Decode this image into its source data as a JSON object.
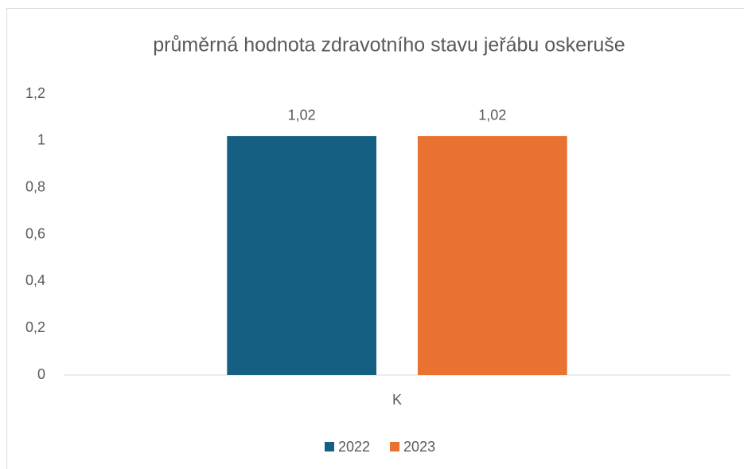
{
  "chart_data": {
    "type": "bar",
    "title": "průměrná hodnota zdravotního stavu jeřábu oskeruše",
    "categories": [
      "K"
    ],
    "series": [
      {
        "name": "2022",
        "color": "#156082",
        "values": [
          1.02
        ],
        "value_labels": [
          "1,02"
        ]
      },
      {
        "name": "2023",
        "color": "#e97132",
        "values": [
          1.02
        ],
        "value_labels": [
          "1,02"
        ]
      }
    ],
    "ylim": [
      0,
      1.2
    ],
    "yticks": [
      0,
      {
        "value": 0.2,
        "label": "0,2"
      },
      {
        "value": 0.4,
        "label": "0,4"
      },
      {
        "value": 0.6,
        "label": "0,6"
      },
      {
        "value": 0.8,
        "label": "0,8"
      },
      1,
      {
        "value": 1.2,
        "label": "1,2"
      }
    ],
    "grid": false,
    "legend": "bottom"
  }
}
